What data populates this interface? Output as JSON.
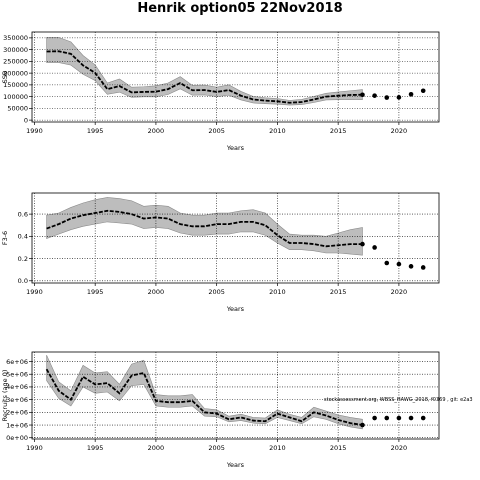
{
  "figure": {
    "title": "Henrik option05 22Nov2018",
    "annotation": "stockassessment.org, WBSS_HAWG_2018, f0369 , git: e2a3"
  },
  "style": {
    "band_color": "#bdbdbd",
    "line_color": "#000000",
    "grid_color": "#000000"
  },
  "chart_data": [
    {
      "type": "line",
      "xlabel": "Years",
      "ylabel": "SSB",
      "xlim": [
        1989.8,
        2023.3
      ],
      "ylim": [
        -8000,
        375000
      ],
      "xticks": [
        1990,
        1995,
        2000,
        2005,
        2010,
        2015,
        2020
      ],
      "yticks": [
        0,
        50000,
        100000,
        150000,
        200000,
        250000,
        300000,
        350000
      ],
      "ytick_labels": [
        "0",
        "50000",
        "100000",
        "150000",
        "200000",
        "250000",
        "300000",
        "350000"
      ],
      "grid": true,
      "x": [
        1991,
        1992,
        1993,
        1994,
        1995,
        1996,
        1997,
        1998,
        1999,
        2000,
        2001,
        2002,
        2003,
        2004,
        2005,
        2006,
        2007,
        2008,
        2009,
        2010,
        2011,
        2012,
        2013,
        2014,
        2015,
        2016,
        2017
      ],
      "series": [
        {
          "values": [
            292000,
            293000,
            282000,
            233000,
            201000,
            132000,
            145000,
            118000,
            120000,
            121000,
            132000,
            158000,
            127000,
            128000,
            120000,
            128000,
            104000,
            88000,
            83000,
            80000,
            74000,
            77000,
            88000,
            100000,
            104000,
            107000,
            108000
          ]
        }
      ],
      "band_upper": [
        352000,
        352000,
        333000,
        275000,
        235000,
        158000,
        175000,
        140000,
        142000,
        146000,
        158000,
        185000,
        148000,
        149000,
        140000,
        150000,
        122000,
        101000,
        95000,
        92000,
        84000,
        88000,
        101000,
        114000,
        120000,
        125000,
        130000
      ],
      "band_lower": [
        245000,
        245000,
        234000,
        195000,
        168000,
        110000,
        119000,
        97000,
        99000,
        99000,
        109000,
        133000,
        106000,
        107000,
        100000,
        106000,
        86000,
        73000,
        70000,
        68000,
        64000,
        66000,
        75000,
        86000,
        87000,
        88000,
        87000
      ],
      "forecast": {
        "x": [
          2017,
          2018,
          2019,
          2020,
          2021,
          2022
        ],
        "values": [
          108000,
          104000,
          96000,
          97000,
          110000,
          125000
        ]
      }
    },
    {
      "type": "line",
      "xlabel": "Years",
      "ylabel": "F3-6",
      "xlim": [
        1989.8,
        2023.3
      ],
      "ylim": [
        -0.02,
        0.79
      ],
      "xticks": [
        1990,
        1995,
        2000,
        2005,
        2010,
        2015,
        2020
      ],
      "yticks": [
        0.0,
        0.2,
        0.4,
        0.6
      ],
      "ytick_labels": [
        "0.0",
        "0.2",
        "0.4",
        "0.6"
      ],
      "grid": true,
      "x": [
        1991,
        1992,
        1993,
        1994,
        1995,
        1996,
        1997,
        1998,
        1999,
        2000,
        2001,
        2002,
        2003,
        2004,
        2005,
        2006,
        2007,
        2008,
        2009,
        2010,
        2011,
        2012,
        2013,
        2014,
        2015,
        2016,
        2017
      ],
      "series": [
        {
          "values": [
            0.47,
            0.51,
            0.56,
            0.59,
            0.61,
            0.63,
            0.62,
            0.6,
            0.56,
            0.57,
            0.56,
            0.51,
            0.49,
            0.49,
            0.51,
            0.51,
            0.53,
            0.53,
            0.5,
            0.41,
            0.34,
            0.34,
            0.33,
            0.31,
            0.32,
            0.33,
            0.33
          ]
        }
      ],
      "band_upper": [
        0.59,
        0.61,
        0.66,
        0.7,
        0.73,
        0.75,
        0.74,
        0.72,
        0.67,
        0.68,
        0.67,
        0.61,
        0.59,
        0.59,
        0.61,
        0.61,
        0.63,
        0.64,
        0.61,
        0.51,
        0.42,
        0.41,
        0.41,
        0.4,
        0.43,
        0.46,
        0.48
      ],
      "band_lower": [
        0.38,
        0.42,
        0.46,
        0.49,
        0.51,
        0.53,
        0.52,
        0.51,
        0.47,
        0.48,
        0.47,
        0.43,
        0.41,
        0.41,
        0.42,
        0.42,
        0.44,
        0.44,
        0.41,
        0.34,
        0.28,
        0.28,
        0.27,
        0.25,
        0.25,
        0.24,
        0.23
      ],
      "forecast": {
        "x": [
          2017,
          2018,
          2019,
          2020,
          2021,
          2022
        ],
        "values": [
          0.33,
          0.3,
          0.16,
          0.15,
          0.13,
          0.12
        ]
      }
    },
    {
      "type": "line",
      "xlabel": "Years",
      "ylabel": "Recruits (age 0)",
      "xlim": [
        1989.8,
        2023.3
      ],
      "ylim": [
        -100000,
        6750000
      ],
      "xticks": [
        1990,
        1995,
        2000,
        2005,
        2010,
        2015,
        2020
      ],
      "yticks": [
        0,
        1000000,
        2000000,
        3000000,
        4000000,
        5000000,
        6000000
      ],
      "ytick_labels": [
        "0e+00",
        "1e+06",
        "2e+06",
        "3e+06",
        "4e+06",
        "5e+06",
        "6e+06"
      ],
      "grid": true,
      "x": [
        1991,
        1992,
        1993,
        1994,
        1995,
        1996,
        1997,
        1998,
        1999,
        2000,
        2001,
        2002,
        2003,
        2004,
        2005,
        2006,
        2007,
        2008,
        2009,
        2010,
        2011,
        2012,
        2013,
        2014,
        2015,
        2016,
        2017
      ],
      "series": [
        {
          "values": [
            5400000,
            3700000,
            3000000,
            4800000,
            4200000,
            4300000,
            3500000,
            4900000,
            5100000,
            2900000,
            2800000,
            2800000,
            2900000,
            2000000,
            1900000,
            1450000,
            1600000,
            1350000,
            1300000,
            1900000,
            1600000,
            1300000,
            2000000,
            1750000,
            1400000,
            1150000,
            1000000
          ]
        }
      ],
      "band_upper": [
        6500000,
        4400000,
        3700000,
        5700000,
        5100000,
        5200000,
        4200000,
        5800000,
        6100000,
        3400000,
        3300000,
        3300000,
        3400000,
        2300000,
        2200000,
        1700000,
        1850000,
        1600000,
        1550000,
        2200000,
        1850000,
        1600000,
        2400000,
        2100000,
        1800000,
        1600000,
        1450000
      ],
      "band_lower": [
        4500000,
        3100000,
        2500000,
        4000000,
        3500000,
        3600000,
        2900000,
        4100000,
        4200000,
        2500000,
        2400000,
        2400000,
        2500000,
        1700000,
        1650000,
        1250000,
        1350000,
        1150000,
        1100000,
        1600000,
        1350000,
        1100000,
        1650000,
        1450000,
        1100000,
        850000,
        700000
      ],
      "forecast": {
        "x": [
          2017,
          2018,
          2019,
          2020,
          2021,
          2022
        ],
        "values": [
          1000000,
          1550000,
          1550000,
          1550000,
          1550000,
          1550000
        ]
      }
    }
  ]
}
